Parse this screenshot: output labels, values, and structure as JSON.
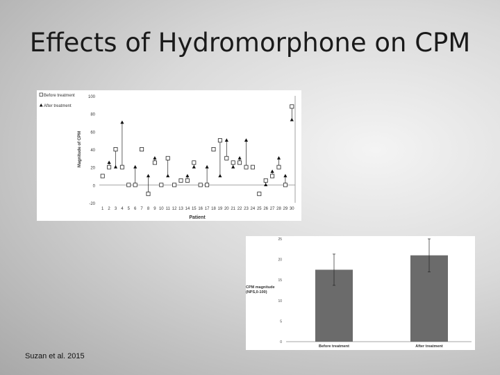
{
  "slide": {
    "title": "Effects of Hydromorphone on CPM",
    "citation": "Suzan et al. 2015"
  },
  "chart_data": [
    {
      "type": "scatter",
      "ylabel": "Magnitude of CPM",
      "xlabel": "Patient",
      "ylim": [
        -20,
        100
      ],
      "yticks": [
        -20,
        0,
        20,
        40,
        60,
        80,
        100
      ],
      "legend_position": "top-left",
      "grid": false,
      "categories": [
        "1",
        "2",
        "3",
        "4",
        "5",
        "6",
        "7",
        "8",
        "9",
        "10",
        "11",
        "12",
        "13",
        "14",
        "15",
        "16",
        "17",
        "18",
        "19",
        "20",
        "21",
        "22",
        "23",
        "24",
        "25",
        "26",
        "27",
        "28",
        "29",
        "30"
      ],
      "series": [
        {
          "name": "Before treatment",
          "marker": "square",
          "values": [
            10,
            20,
            40,
            20,
            0,
            0,
            40,
            -10,
            25,
            0,
            30,
            0,
            5,
            5,
            25,
            0,
            0,
            40,
            50,
            30,
            25,
            25,
            20,
            20,
            -10,
            5,
            10,
            20,
            0,
            88
          ]
        },
        {
          "name": "After treatment",
          "marker": "triangle",
          "values": [
            10,
            25,
            20,
            70,
            0,
            20,
            40,
            10,
            30,
            0,
            10,
            0,
            5,
            10,
            20,
            0,
            20,
            40,
            10,
            50,
            20,
            30,
            50,
            20,
            -10,
            0,
            15,
            30,
            10,
            73
          ]
        }
      ]
    },
    {
      "type": "bar",
      "ylabel": "CPM magnitude (NPS,0-100)",
      "ylim": [
        0,
        25
      ],
      "yticks": [
        0,
        5,
        10,
        15,
        20,
        25
      ],
      "categories": [
        "Before treatment",
        "After treatment"
      ],
      "values": [
        17.5,
        21
      ],
      "error": [
        3.8,
        4
      ],
      "bar_color": "#6b6b6b"
    }
  ]
}
